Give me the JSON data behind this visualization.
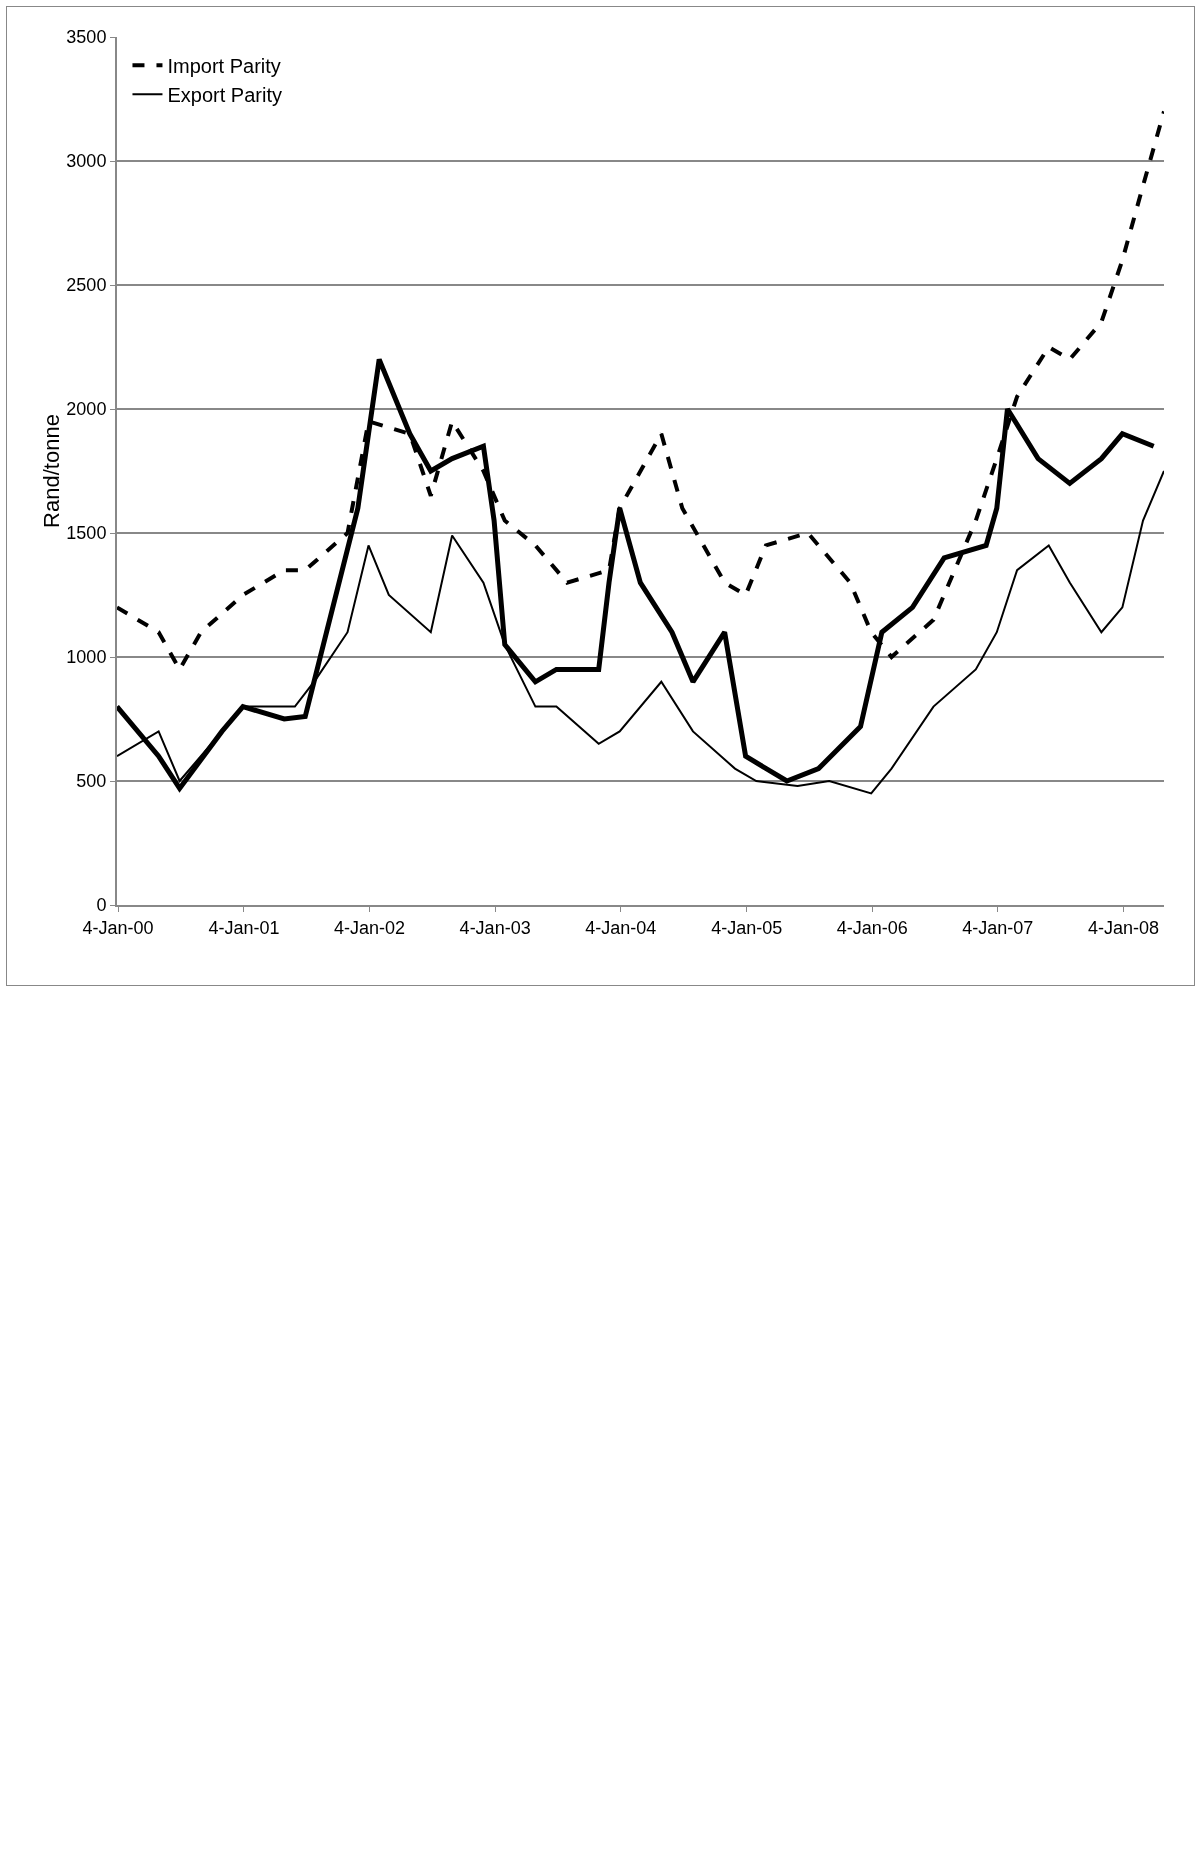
{
  "chart_data": {
    "type": "line",
    "ylabel": "Rand/tonne",
    "xlim": [
      "2000-01-01",
      "2008-05-01"
    ],
    "xticks": [
      {
        "value": "2000-01-04",
        "label": "4-Jan-00"
      },
      {
        "value": "2001-01-04",
        "label": "4-Jan-01"
      },
      {
        "value": "2002-01-04",
        "label": "4-Jan-02"
      },
      {
        "value": "2003-01-04",
        "label": "4-Jan-03"
      },
      {
        "value": "2004-01-04",
        "label": "4-Jan-04"
      },
      {
        "value": "2005-01-04",
        "label": "4-Jan-05"
      },
      {
        "value": "2006-01-04",
        "label": "4-Jan-06"
      },
      {
        "value": "2007-01-04",
        "label": "4-Jan-07"
      },
      {
        "value": "2008-01-04",
        "label": "4-Jan-08"
      }
    ],
    "ylim": [
      0,
      3500
    ],
    "yticks": [
      0,
      500,
      1000,
      1500,
      2000,
      2500,
      3000,
      3500
    ],
    "grid": "y",
    "legend": "top left",
    "marker": "none",
    "series": [
      {
        "color": "#000000",
        "line_style": "solid",
        "x": [
          "2000-01",
          "2000-05",
          "2000-07",
          "2000-11",
          "2001-01",
          "2001-05",
          "2001-07",
          "2001-09",
          "2001-12",
          "2002-02",
          "2002-05",
          "2002-07",
          "2002-09",
          "2002-12",
          "2003-01",
          "2003-02",
          "2003-05",
          "2003-07",
          "2003-11",
          "2003-12",
          "2004-01",
          "2004-03",
          "2004-06",
          "2004-08",
          "2004-11",
          "2005-01",
          "2005-05",
          "2005-08",
          "2005-12",
          "2006-02",
          "2006-05",
          "2006-08",
          "2006-12",
          "2007-01",
          "2007-02",
          "2007-05",
          "2007-08",
          "2007-11",
          "2008-01",
          "2008-04"
        ],
        "values": [
          800,
          600,
          470,
          700,
          800,
          750,
          760,
          1100,
          1600,
          2200,
          1900,
          1750,
          1800,
          1850,
          1550,
          1050,
          900,
          950,
          950,
          1300,
          1600,
          1300,
          1100,
          900,
          1100,
          600,
          500,
          550,
          720,
          1100,
          1200,
          1400,
          1450,
          1600,
          2000,
          1800,
          1700,
          1800,
          1900,
          1850
        ]
      },
      {
        "name": "Import Parity",
        "color": "#000000",
        "line_style": "dashed",
        "x": [
          "2000-01",
          "2000-05",
          "2000-07",
          "2000-09",
          "2001-01",
          "2001-05",
          "2001-07",
          "2001-11",
          "2002-01",
          "2002-05",
          "2002-07",
          "2002-09",
          "2002-12",
          "2003-02",
          "2003-05",
          "2003-08",
          "2003-12",
          "2004-01",
          "2004-05",
          "2004-07",
          "2004-11",
          "2005-01",
          "2005-03",
          "2005-07",
          "2005-11",
          "2006-01",
          "2006-03",
          "2006-07",
          "2006-11",
          "2007-01",
          "2007-03",
          "2007-06",
          "2007-08",
          "2007-11",
          "2008-01",
          "2008-03",
          "2008-05"
        ],
        "values": [
          1200,
          1100,
          950,
          1100,
          1250,
          1350,
          1350,
          1500,
          1950,
          1900,
          1650,
          1950,
          1750,
          1550,
          1450,
          1300,
          1350,
          1600,
          1900,
          1600,
          1300,
          1250,
          1450,
          1500,
          1300,
          1100,
          1000,
          1150,
          1550,
          1800,
          2050,
          2250,
          2200,
          2350,
          2600,
          2900,
          3200
        ]
      },
      {
        "name": "Export Parity",
        "color": "#000000",
        "line_style": "solid",
        "x": [
          "2000-01",
          "2000-05",
          "2000-07",
          "2000-11",
          "2001-01",
          "2001-06",
          "2001-08",
          "2001-11",
          "2002-01",
          "2002-03",
          "2002-07",
          "2002-09",
          "2002-12",
          "2003-02",
          "2003-05",
          "2003-07",
          "2003-11",
          "2004-01",
          "2004-05",
          "2004-08",
          "2004-12",
          "2005-02",
          "2005-06",
          "2005-09",
          "2006-01",
          "2006-03",
          "2006-07",
          "2006-11",
          "2007-01",
          "2007-03",
          "2007-06",
          "2007-08",
          "2007-11",
          "2008-01",
          "2008-03",
          "2008-05"
        ],
        "values": [
          600,
          700,
          500,
          700,
          800,
          800,
          910,
          1100,
          1450,
          1250,
          1100,
          1490,
          1300,
          1050,
          800,
          800,
          650,
          700,
          900,
          700,
          550,
          500,
          480,
          500,
          450,
          550,
          800,
          950,
          1100,
          1350,
          1450,
          1300,
          1100,
          1200,
          1550,
          1750
        ]
      }
    ]
  }
}
